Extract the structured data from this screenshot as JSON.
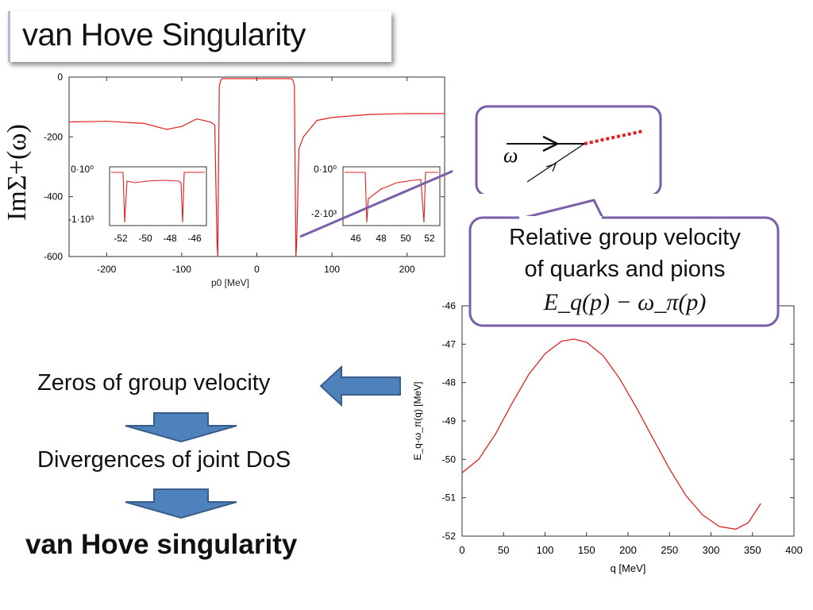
{
  "slide": {
    "title": "van Hove Singularity",
    "steps": [
      "Zeros of group velocity",
      "Divergences of joint DoS",
      "van Hove singularity"
    ],
    "callout_line1": "Relative group velocity",
    "callout_line2": "of quarks and pions",
    "callout_formula": "E_q(p) − ω_π(p)",
    "diagram_label": "ω",
    "colors": {
      "accent_purple": "#7a5ea8",
      "arrow_blue": "#4f81bd",
      "curve_red": "#e02020"
    }
  },
  "chart_data": [
    {
      "type": "line",
      "name": "top-left self-energy plot",
      "ylabel": "ImΣ+(ω)",
      "xlabel": "p0 [MeV]",
      "xlim": [
        -250,
        250
      ],
      "ylim": [
        -600,
        0
      ],
      "xticks": [
        "-200",
        "-100",
        "0",
        "100",
        "200"
      ],
      "yticks": [
        "0",
        "-200",
        "-400",
        "-600"
      ],
      "series": [
        {
          "name": "ImSigma",
          "x": [
            -250,
            -200,
            -150,
            -120,
            -100,
            -80,
            -62,
            -56,
            -53,
            -52,
            -50,
            -48,
            -46,
            -40,
            0,
            40,
            46,
            48,
            50,
            52,
            53,
            56,
            62,
            80,
            100,
            150,
            200,
            250
          ],
          "y": [
            -150,
            -148,
            -155,
            -175,
            -165,
            -140,
            -150,
            -160,
            -560,
            -600,
            -30,
            -10,
            -5,
            -3,
            -2,
            -3,
            -5,
            -10,
            -30,
            -600,
            -560,
            -240,
            -200,
            -145,
            -135,
            -125,
            -122,
            -122
          ]
        }
      ],
      "insets": [
        {
          "xticks": [
            "-52",
            "-50",
            "-48",
            "-46"
          ],
          "yticks": [
            "0·10⁰",
            "-1·10³"
          ]
        },
        {
          "xticks": [
            "46",
            "48",
            "50",
            "52"
          ],
          "yticks": [
            "0·10⁰",
            "-2·10³"
          ]
        }
      ]
    },
    {
      "type": "line",
      "name": "bottom-right dispersion plot",
      "xlabel": "q [MeV]",
      "ylabel": "E_q-ω_π(q) [MeV]",
      "xlim": [
        0,
        400
      ],
      "ylim": [
        -52,
        -46
      ],
      "xticks": [
        "0",
        "50",
        "100",
        "150",
        "200",
        "250",
        "300",
        "350",
        "400"
      ],
      "yticks": [
        "-46",
        "-47",
        "-48",
        "-49",
        "-50",
        "-51",
        "-52"
      ],
      "series": [
        {
          "name": "E_q - omega_pi",
          "x": [
            0,
            20,
            40,
            60,
            80,
            100,
            120,
            135,
            150,
            170,
            190,
            210,
            230,
            250,
            270,
            290,
            310,
            330,
            345,
            360
          ],
          "y": [
            -50.35,
            -50.0,
            -49.35,
            -48.55,
            -47.8,
            -47.25,
            -46.92,
            -46.87,
            -46.95,
            -47.3,
            -47.9,
            -48.65,
            -49.45,
            -50.25,
            -50.95,
            -51.45,
            -51.75,
            -51.82,
            -51.65,
            -51.15
          ]
        }
      ]
    }
  ]
}
